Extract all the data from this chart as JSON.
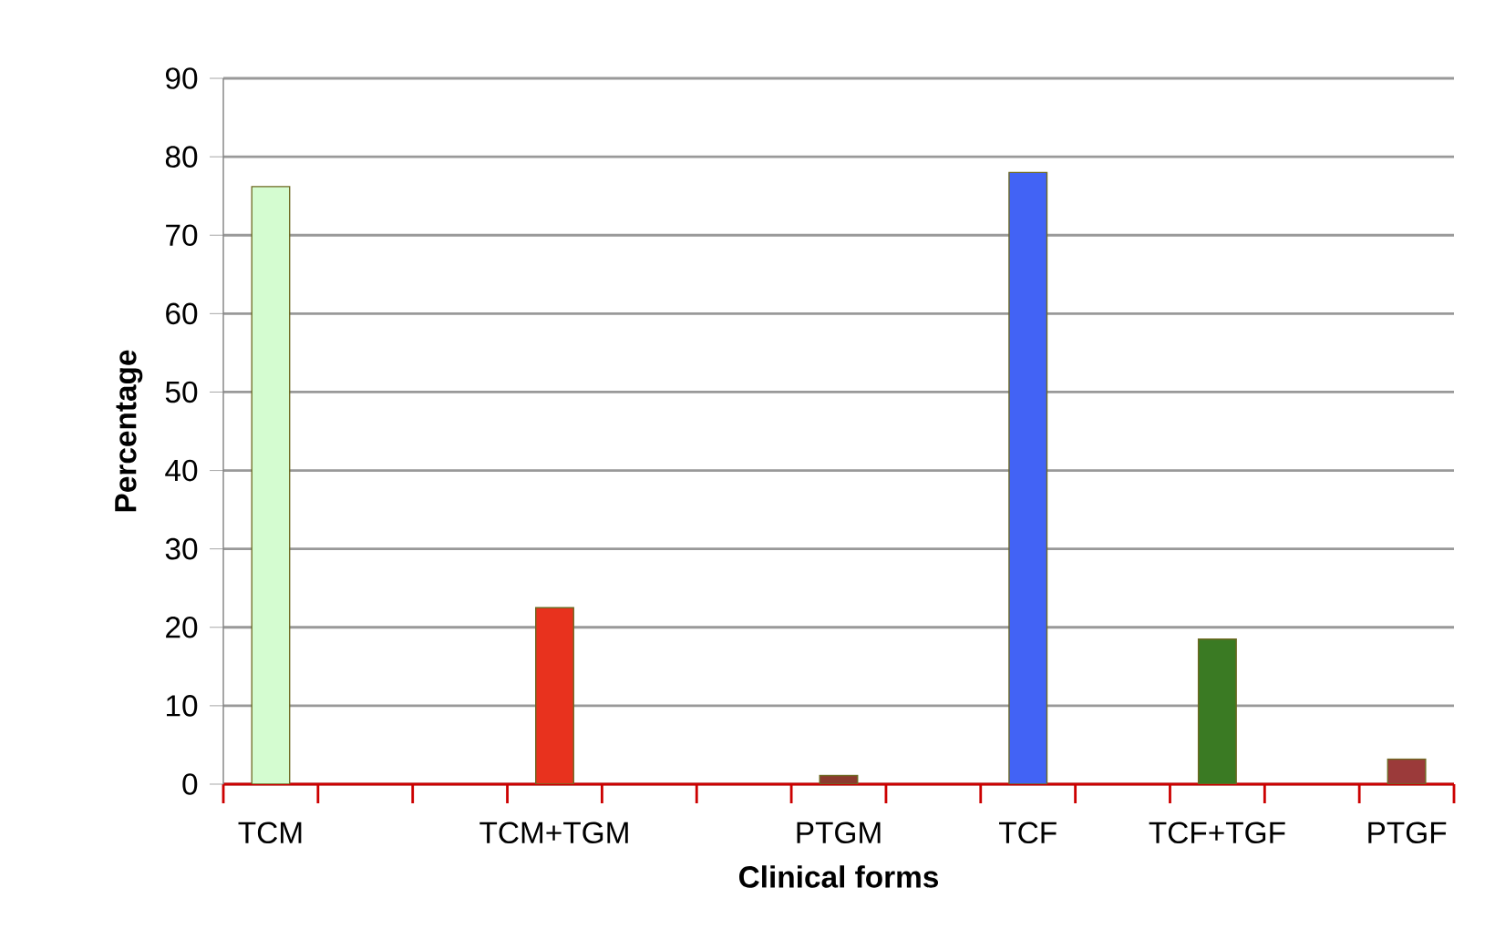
{
  "chart_data": {
    "type": "bar",
    "xlabel": "Clinical forms",
    "ylabel": "Percentage",
    "categories": [
      "TCM",
      null,
      null,
      "TCM+TGM",
      null,
      null,
      "PTGM",
      null,
      "TCF",
      null,
      "TCF+TGF",
      null,
      "PTGF"
    ],
    "values": [
      76.2,
      null,
      null,
      22.5,
      null,
      null,
      1.1,
      null,
      78,
      null,
      18.5,
      null,
      3.2
    ],
    "colors": [
      "#d4fcd0",
      null,
      null,
      "#e8321e",
      null,
      null,
      "#8b3a2e",
      null,
      "#4263f5",
      null,
      "#3a7a23",
      null,
      "#9b3a3a"
    ],
    "ylim": [
      0,
      90
    ],
    "yticks": [
      0,
      10,
      20,
      30,
      40,
      50,
      60,
      70,
      80,
      90
    ],
    "grid": "y"
  }
}
